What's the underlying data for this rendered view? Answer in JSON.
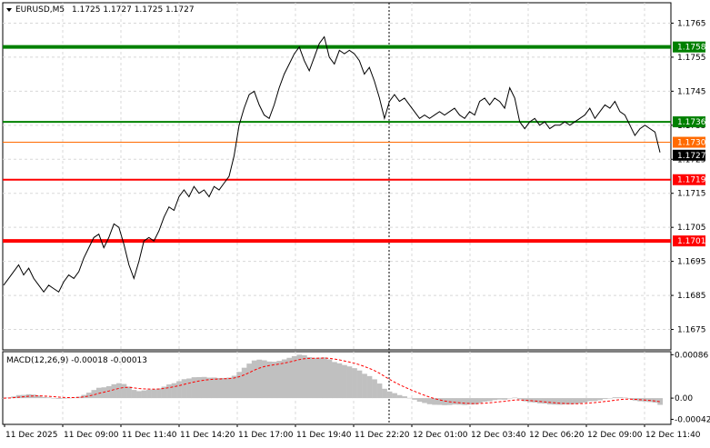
{
  "header": {
    "symbol": "EURUSD,M5",
    "ohlc": "1.1725 1.1727 1.1725 1.1727"
  },
  "macd": {
    "label": "MACD(12,26,9) -0.00018 -0.00013",
    "ticks": [
      "0.00086",
      "0.00",
      "-0.00042"
    ],
    "tick_values": [
      0.00086,
      0.0,
      -0.00042
    ],
    "ylim": [
      -0.00052,
      0.00092
    ],
    "hist_color": "#c0c0c0",
    "signal_color": "#ff0000"
  },
  "colors": {
    "price_line": "#000000",
    "green_line": "#008000",
    "red_line": "#ff0000",
    "orange_line": "#ff6a00",
    "current_price_bg": "#000000"
  },
  "chart_data": {
    "type": "line",
    "ylim": [
      1.1669,
      1.1771
    ],
    "y_ticks": [
      1.1765,
      1.1755,
      1.1745,
      1.1735,
      1.1725,
      1.1715,
      1.1705,
      1.1695,
      1.1685,
      1.1675
    ],
    "y_tick_labels": [
      "1.1765",
      "1.1755",
      "1.1745",
      "1.1735",
      "1.1725",
      "1.1715",
      "1.1705",
      "1.1695",
      "1.1685",
      "1.1675"
    ],
    "x_labels": [
      "11 Dec 2025",
      "11 Dec 09:00",
      "11 Dec 11:40",
      "11 Dec 14:20",
      "11 Dec 17:00",
      "11 Dec 19:40",
      "11 Dec 22:20",
      "12 Dec 01:00",
      "12 Dec 03:40",
      "12 Dec 06:20",
      "12 Dec 09:00",
      "12 Dec 11:40"
    ],
    "levels": [
      {
        "value": 1.1758,
        "label": "1.1758",
        "color": "#008000",
        "width": 4
      },
      {
        "value": 1.1736,
        "label": "1.1736",
        "color": "#008000",
        "width": 2
      },
      {
        "value": 1.173,
        "label": "1.1730",
        "color": "#ff6a00",
        "width": 1
      },
      {
        "value": 1.1719,
        "label": "1.1719",
        "color": "#ff0000",
        "width": 2
      },
      {
        "value": 1.1701,
        "label": "1.1701",
        "color": "#ff0000",
        "width": 4
      }
    ],
    "current_price": {
      "value": 1.1727,
      "label": "1.1727"
    },
    "series": [
      {
        "values": [
          1.1688,
          1.169,
          1.1692,
          1.1694,
          1.1691,
          1.1693,
          1.169,
          1.1688,
          1.1686,
          1.1688,
          1.1687,
          1.1686,
          1.1689,
          1.1691,
          1.169,
          1.1692,
          1.1696,
          1.1699,
          1.1702,
          1.1703,
          1.1699,
          1.1702,
          1.1706,
          1.1705,
          1.17,
          1.1694,
          1.169,
          1.1695,
          1.1701,
          1.1702,
          1.1701,
          1.1704,
          1.1708,
          1.1711,
          1.171,
          1.1714,
          1.1716,
          1.1714,
          1.1717,
          1.1715,
          1.1716,
          1.1714,
          1.1717,
          1.1716,
          1.1718,
          1.172,
          1.1726,
          1.1735,
          1.174,
          1.1744,
          1.1745,
          1.1741,
          1.1738,
          1.1737,
          1.1741,
          1.1746,
          1.175,
          1.1753,
          1.1756,
          1.1758,
          1.1754,
          1.1751,
          1.1755,
          1.1759,
          1.1761,
          1.1755,
          1.1753,
          1.1757,
          1.1756,
          1.1757,
          1.1756,
          1.1754,
          1.175,
          1.1752,
          1.1748,
          1.1743,
          1.1737,
          1.1742,
          1.1744,
          1.1742,
          1.1743,
          1.1741,
          1.1739,
          1.1737,
          1.1738,
          1.1737,
          1.1738,
          1.1739,
          1.1738,
          1.1739,
          1.174,
          1.1738,
          1.1737,
          1.1739,
          1.1738,
          1.1742,
          1.1743,
          1.1741,
          1.1743,
          1.1742,
          1.174,
          1.1746,
          1.1743,
          1.1736,
          1.1734,
          1.1736,
          1.1737,
          1.1735,
          1.1736,
          1.1734,
          1.1735,
          1.1735,
          1.1736,
          1.1735,
          1.1736,
          1.1737,
          1.1738,
          1.174,
          1.1737,
          1.1739,
          1.1741,
          1.174,
          1.1742,
          1.1739,
          1.1738,
          1.1735,
          1.1732,
          1.1734,
          1.1735,
          1.1734,
          1.1733,
          1.1727
        ]
      }
    ]
  }
}
